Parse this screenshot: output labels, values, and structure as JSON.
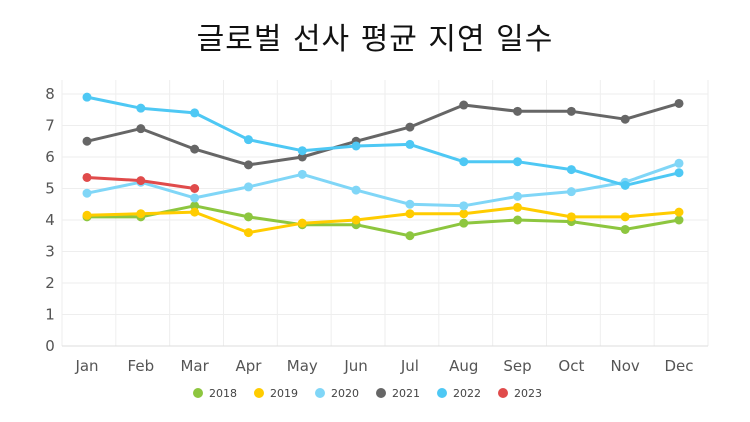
{
  "chart_data": {
    "type": "line",
    "title": "글로벌 선사 평균 지연 일수",
    "xlabel": "",
    "ylabel": "",
    "categories": [
      "Jan",
      "Feb",
      "Mar",
      "Apr",
      "May",
      "Jun",
      "Jul",
      "Aug",
      "Sep",
      "Oct",
      "Nov",
      "Dec"
    ],
    "ylim": [
      0,
      8
    ],
    "yticks": [
      "0",
      "1",
      "2",
      "3",
      "4",
      "5",
      "6",
      "7",
      "8"
    ],
    "grid": true,
    "legend_position": "bottom",
    "series": [
      {
        "name": "2018",
        "color": "#8dc63f",
        "values": [
          4.1,
          4.1,
          4.45,
          4.1,
          3.85,
          3.85,
          3.5,
          3.9,
          4.0,
          3.95,
          3.7,
          4.0
        ]
      },
      {
        "name": "2019",
        "color": "#ffcc00",
        "values": [
          4.15,
          4.2,
          4.25,
          3.6,
          3.9,
          4.0,
          4.2,
          4.2,
          4.4,
          4.1,
          4.1,
          4.25
        ]
      },
      {
        "name": "2020",
        "color": "#80d6f7",
        "values": [
          4.85,
          5.2,
          4.7,
          5.05,
          5.45,
          4.95,
          4.5,
          4.45,
          4.75,
          4.9,
          5.2,
          5.8
        ]
      },
      {
        "name": "2021",
        "color": "#666666",
        "values": [
          6.5,
          6.9,
          6.25,
          5.75,
          6.0,
          6.5,
          6.95,
          7.65,
          7.45,
          7.45,
          7.2,
          7.7
        ]
      },
      {
        "name": "2022",
        "color": "#4ec8f4",
        "values": [
          7.9,
          7.55,
          7.4,
          6.55,
          6.2,
          6.35,
          6.4,
          5.85,
          5.85,
          5.6,
          5.1,
          5.5
        ]
      },
      {
        "name": "2023",
        "color": "#e04b4b",
        "values": [
          5.35,
          5.25,
          5.0,
          null,
          null,
          null,
          null,
          null,
          null,
          null,
          null,
          null
        ]
      }
    ]
  }
}
